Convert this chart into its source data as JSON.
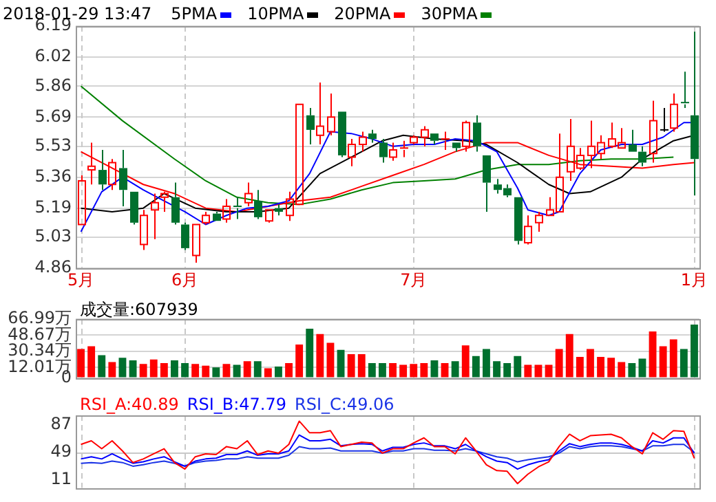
{
  "chart_data": [
    {
      "type": "candlestick",
      "title": "2018-01-29 13:47",
      "legend": "top",
      "marker": "none",
      "grid": true,
      "categories": [
        "5月",
        null,
        null,
        null,
        null,
        null,
        null,
        null,
        null,
        null,
        "6月",
        null,
        null,
        null,
        null,
        null,
        null,
        null,
        null,
        null,
        null,
        null,
        null,
        null,
        null,
        null,
        null,
        null,
        null,
        null,
        null,
        null,
        "7月",
        null,
        null,
        null,
        null,
        null,
        null,
        null,
        null,
        null,
        null,
        null,
        null,
        null,
        null,
        null,
        null,
        null,
        null,
        null,
        null,
        null,
        null,
        null,
        null,
        null,
        null,
        "1月"
      ],
      "ylim": [
        4.86,
        6.19
      ],
      "yticks": [
        4.86,
        5.03,
        5.19,
        5.36,
        5.53,
        5.69,
        5.86,
        6.02,
        6.19
      ],
      "ohlc": [
        [
          5.1,
          5.37,
          5.1,
          5.34
        ],
        [
          5.4,
          5.55,
          5.32,
          5.42
        ],
        [
          5.4,
          5.51,
          5.29,
          5.32
        ],
        [
          5.32,
          5.46,
          5.29,
          5.44
        ],
        [
          5.41,
          5.51,
          5.2,
          5.29
        ],
        [
          5.28,
          5.28,
          5.1,
          5.11
        ],
        [
          4.99,
          5.18,
          4.96,
          5.15
        ],
        [
          5.18,
          5.27,
          5.02,
          5.22
        ],
        [
          5.25,
          5.28,
          5.17,
          5.27
        ],
        [
          5.25,
          5.33,
          5.1,
          5.11
        ],
        [
          5.1,
          5.11,
          4.96,
          4.97
        ],
        [
          4.93,
          5.1,
          4.89,
          5.1
        ],
        [
          5.11,
          5.17,
          5.1,
          5.15
        ],
        [
          5.16,
          5.17,
          5.12,
          5.12
        ],
        [
          5.13,
          5.24,
          5.11,
          5.2
        ],
        [
          5.2,
          5.25,
          5.13,
          5.19
        ],
        [
          5.22,
          5.33,
          5.2,
          5.27
        ],
        [
          5.23,
          5.29,
          5.13,
          5.14
        ],
        [
          5.12,
          5.18,
          5.11,
          5.18
        ],
        [
          5.19,
          5.21,
          5.15,
          5.17
        ],
        [
          5.15,
          5.28,
          5.12,
          5.24
        ],
        [
          5.21,
          5.76,
          5.21,
          5.76
        ],
        [
          5.7,
          5.74,
          5.54,
          5.62
        ],
        [
          5.59,
          5.88,
          5.54,
          5.64
        ],
        [
          5.61,
          5.82,
          5.59,
          5.69
        ],
        [
          5.72,
          5.72,
          5.47,
          5.48
        ],
        [
          5.47,
          5.57,
          5.42,
          5.54
        ],
        [
          5.54,
          5.61,
          5.5,
          5.58
        ],
        [
          5.6,
          5.62,
          5.55,
          5.57
        ],
        [
          5.55,
          5.57,
          5.44,
          5.47
        ],
        [
          5.47,
          5.55,
          5.45,
          5.51
        ],
        [
          5.51,
          5.56,
          5.47,
          5.52
        ],
        [
          5.55,
          5.59,
          5.54,
          5.58
        ],
        [
          5.58,
          5.64,
          5.53,
          5.62
        ],
        [
          5.6,
          5.6,
          5.54,
          5.56
        ],
        [
          5.56,
          5.61,
          5.51,
          5.57
        ],
        [
          5.55,
          5.55,
          5.5,
          5.52
        ],
        [
          5.53,
          5.67,
          5.5,
          5.66
        ],
        [
          5.66,
          5.7,
          5.5,
          5.53
        ],
        [
          5.48,
          5.48,
          5.17,
          5.33
        ],
        [
          5.32,
          5.35,
          5.27,
          5.29
        ],
        [
          5.3,
          5.32,
          5.25,
          5.26
        ],
        [
          5.25,
          5.25,
          4.99,
          5.01
        ],
        [
          5.0,
          5.15,
          4.99,
          5.09
        ],
        [
          5.11,
          5.17,
          5.06,
          5.15
        ],
        [
          5.15,
          5.25,
          5.15,
          5.18
        ],
        [
          5.17,
          5.6,
          5.17,
          5.36
        ],
        [
          5.39,
          5.68,
          5.34,
          5.53
        ],
        [
          5.41,
          5.52,
          5.4,
          5.48
        ],
        [
          5.48,
          5.67,
          5.41,
          5.53
        ],
        [
          5.49,
          5.59,
          5.46,
          5.55
        ],
        [
          5.53,
          5.66,
          5.52,
          5.57
        ],
        [
          5.52,
          5.63,
          5.52,
          5.55
        ],
        [
          5.54,
          5.62,
          5.5,
          5.5
        ],
        [
          5.5,
          5.53,
          5.42,
          5.44
        ],
        [
          5.49,
          5.78,
          5.44,
          5.67
        ],
        [
          5.62,
          5.74,
          5.61,
          5.62
        ],
        [
          5.63,
          5.82,
          5.61,
          5.76
        ],
        [
          5.77,
          5.94,
          5.74,
          5.76
        ],
        [
          5.7,
          6.16,
          5.26,
          5.46
        ]
      ],
      "colors": [
        "#ff0000",
        "#ff0000",
        "#00702e",
        "#ff0000",
        "#00702e",
        "#00702e",
        "#ff0000",
        "#ff0000",
        "#ff0000",
        "#00702e",
        "#00702e",
        "#ff0000",
        "#ff0000",
        "#00702e",
        "#ff0000",
        "#00702e",
        "#ff0000",
        "#00702e",
        "#ff0000",
        "#00702e",
        "#ff0000",
        "#ff0000",
        "#00702e",
        "#ff0000",
        "#ff0000",
        "#00702e",
        "#ff0000",
        "#ff0000",
        "#00702e",
        "#00702e",
        "#ff0000",
        "#ff0000",
        "#ff0000",
        "#ff0000",
        "#00702e",
        "#ff0000",
        "#00702e",
        "#ff0000",
        "#00702e",
        "#00702e",
        "#00702e",
        "#00702e",
        "#00702e",
        "#ff0000",
        "#ff0000",
        "#ff0000",
        "#ff0000",
        "#ff0000",
        "#ff0000",
        "#ff0000",
        "#ff0000",
        "#ff0000",
        "#ff0000",
        "#00702e",
        "#00702e",
        "#ff0000",
        "#000000",
        "#ff0000",
        "#00702e",
        "#00702e"
      ],
      "series": [
        {
          "name": "5PMA",
          "type": "line",
          "color": "#0000ff",
          "values": [
            5.06,
            null,
            5.28,
            null,
            5.36,
            null,
            5.29,
            null,
            5.23,
            null,
            5.17,
            null,
            5.1,
            null,
            5.15,
            null,
            5.19,
            null,
            5.2,
            null,
            5.23,
            null,
            5.38,
            null,
            5.61,
            null,
            5.6,
            null,
            5.57,
            null,
            5.53,
            null,
            5.54,
            null,
            5.54,
            null,
            5.57,
            null,
            5.56,
            null,
            5.5,
            null,
            5.3,
            5.18,
            null,
            5.15,
            5.17,
            null,
            5.38,
            null,
            5.51,
            null,
            5.54,
            null,
            5.54,
            null,
            5.58,
            null,
            5.66,
            5.66
          ]
        },
        {
          "name": "10PMA",
          "type": "line",
          "color": "#000000",
          "values": [
            5.19,
            null,
            null,
            5.17,
            null,
            null,
            5.19,
            null,
            5.27,
            null,
            null,
            5.19,
            null,
            null,
            5.17,
            null,
            null,
            5.17,
            null,
            null,
            5.19,
            null,
            null,
            5.38,
            null,
            null,
            5.47,
            null,
            null,
            5.56,
            null,
            5.59,
            null,
            null,
            5.57,
            null,
            null,
            5.56,
            null,
            5.54,
            null,
            null,
            5.44,
            null,
            null,
            5.32,
            null,
            5.27,
            null,
            5.28,
            null,
            null,
            5.36,
            null,
            5.46,
            null,
            null,
            5.56,
            null,
            5.59
          ]
        },
        {
          "name": "20PMA",
          "type": "line",
          "color": "#ff0000",
          "values": [
            5.5,
            null,
            null,
            5.41,
            null,
            null,
            5.32,
            null,
            null,
            5.27,
            null,
            null,
            5.19,
            null,
            null,
            5.17,
            null,
            null,
            5.2,
            null,
            null,
            5.23,
            null,
            null,
            5.25,
            null,
            null,
            5.31,
            null,
            null,
            5.37,
            null,
            null,
            5.43,
            null,
            null,
            5.5,
            null,
            null,
            5.55,
            null,
            null,
            5.55,
            null,
            null,
            5.48,
            null,
            null,
            5.43,
            null,
            null,
            5.42,
            null,
            null,
            5.41,
            null,
            null,
            5.43,
            null,
            5.44
          ]
        },
        {
          "name": "30PMA",
          "type": "line",
          "color": "#008000",
          "values": [
            5.86,
            null,
            null,
            null,
            5.67,
            null,
            null,
            null,
            null,
            5.46,
            null,
            null,
            5.34,
            null,
            null,
            5.25,
            null,
            null,
            5.22,
            null,
            null,
            5.21,
            null,
            null,
            5.24,
            null,
            null,
            5.29,
            null,
            null,
            5.33,
            null,
            null,
            5.34,
            null,
            null,
            5.35,
            null,
            null,
            5.4,
            null,
            null,
            5.43,
            null,
            null,
            5.43,
            null,
            null,
            5.45,
            null,
            null,
            5.46,
            null,
            null,
            5.46,
            null,
            null,
            5.47,
            null,
            null
          ]
        }
      ]
    },
    {
      "type": "bar",
      "title": "成交量:607939",
      "tick_labels": "y",
      "grid": true,
      "categories": [
        null,
        null,
        null,
        null,
        null,
        null,
        null,
        null,
        null,
        null,
        null,
        null,
        null,
        null,
        null,
        null,
        null,
        null,
        null,
        null,
        null,
        null,
        null,
        null,
        null,
        null,
        null,
        null,
        null,
        null,
        null,
        null,
        null,
        null,
        null,
        null,
        null,
        null,
        null,
        null,
        null,
        null,
        null,
        null,
        null,
        null,
        null,
        null,
        null,
        null,
        null,
        null,
        null,
        null,
        null,
        null,
        null,
        null,
        null,
        null
      ],
      "ylim": [
        0,
        66.99
      ],
      "yticks": [
        0,
        {
          "value": 12.01,
          "label": "12.01万"
        },
        {
          "value": 30.34,
          "label": "30.34万"
        },
        {
          "value": 48.67,
          "label": "48.67万"
        },
        {
          "value": 66.99,
          "label": "66.99万"
        }
      ],
      "values": [
        33,
        36,
        26,
        18,
        23,
        20,
        16,
        21,
        17,
        20,
        17,
        16,
        14,
        12,
        16,
        15,
        19,
        19,
        11,
        13,
        17,
        38,
        56,
        50,
        40,
        32,
        27,
        27,
        17,
        17,
        17,
        15,
        16,
        17,
        20,
        17,
        19,
        37,
        25,
        33,
        19,
        17,
        25,
        15,
        15,
        15,
        33,
        50,
        24,
        33,
        24,
        23,
        18,
        17,
        22,
        53,
        36,
        44,
        33,
        60.79
      ],
      "colors": [
        "#ff0000",
        "#ff0000",
        "#00702e",
        "#ff0000",
        "#00702e",
        "#00702e",
        "#ff0000",
        "#ff0000",
        "#ff0000",
        "#00702e",
        "#00702e",
        "#ff0000",
        "#ff0000",
        "#00702e",
        "#ff0000",
        "#00702e",
        "#ff0000",
        "#00702e",
        "#ff0000",
        "#00702e",
        "#ff0000",
        "#ff0000",
        "#00702e",
        "#ff0000",
        "#ff0000",
        "#00702e",
        "#ff0000",
        "#ff0000",
        "#00702e",
        "#00702e",
        "#ff0000",
        "#ff0000",
        "#ff0000",
        "#ff0000",
        "#00702e",
        "#ff0000",
        "#00702e",
        "#ff0000",
        "#00702e",
        "#00702e",
        "#00702e",
        "#00702e",
        "#00702e",
        "#ff0000",
        "#ff0000",
        "#ff0000",
        "#ff0000",
        "#ff0000",
        "#ff0000",
        "#ff0000",
        "#ff0000",
        "#ff0000",
        "#ff0000",
        "#00702e",
        "#00702e",
        "#ff0000",
        "#ff0000",
        "#ff0000",
        "#00702e",
        "#00702e"
      ]
    },
    {
      "type": "line",
      "legend": "top left",
      "marker": "none",
      "tick_labels": "y",
      "grid": "x",
      "categories": [
        null,
        null,
        null,
        null,
        null,
        null,
        null,
        null,
        null,
        null,
        null,
        null,
        null,
        null,
        null,
        null,
        null,
        null,
        null,
        null,
        null,
        null,
        null,
        null,
        null,
        null,
        null,
        null,
        null,
        null,
        null,
        null,
        null,
        null,
        null,
        null,
        null,
        null,
        null,
        null,
        null,
        null,
        null,
        null,
        null,
        null,
        null,
        null,
        null,
        null,
        null,
        null,
        null,
        null,
        null,
        null,
        null,
        null,
        null,
        null
      ],
      "ylim": [
        0,
        100
      ],
      "yticks": [
        11,
        49,
        87
      ],
      "ref_lines": [
        {
          "axis": "y",
          "value": 49,
          "color": "#c8c8c8"
        }
      ],
      "series": [
        {
          "name": "RSI_A:40.89",
          "color": "#ff0000",
          "values": [
            60,
            65,
            54,
            65,
            51,
            35,
            40,
            47,
            54,
            35,
            26,
            43,
            47,
            46,
            57,
            54,
            65,
            46,
            51,
            48,
            60,
            92,
            76,
            76,
            79,
            57,
            60,
            63,
            62,
            48,
            54,
            54,
            62,
            69,
            57,
            57,
            47,
            69,
            51,
            32,
            24,
            23,
            6,
            19,
            29,
            36,
            57,
            74,
            65,
            72,
            73,
            74,
            69,
            57,
            47,
            76,
            67,
            79,
            78,
            40.89
          ]
        },
        {
          "name": "RSI_B:47.79",
          "color": "#0000ff",
          "values": [
            40,
            43,
            40,
            47,
            40,
            34,
            36,
            40,
            43,
            36,
            30,
            37,
            40,
            41,
            46,
            46,
            51,
            45,
            47,
            47,
            51,
            73,
            65,
            65,
            67,
            58,
            60,
            61,
            60,
            51,
            56,
            56,
            60,
            62,
            58,
            58,
            54,
            60,
            51,
            43,
            37,
            35,
            26,
            32,
            36,
            39,
            51,
            61,
            57,
            60,
            62,
            62,
            60,
            56,
            51,
            65,
            62,
            69,
            69,
            47.79
          ]
        },
        {
          "name": "RSI_C:49.06",
          "color": "#1a33e6",
          "values": [
            34,
            35,
            34,
            37,
            35,
            30,
            32,
            35,
            37,
            34,
            30,
            35,
            37,
            38,
            40,
            40,
            43,
            41,
            41,
            41,
            45,
            57,
            54,
            54,
            55,
            51,
            51,
            51,
            51,
            48,
            51,
            51,
            54,
            54,
            52,
            52,
            51,
            54,
            51,
            47,
            43,
            41,
            36,
            39,
            41,
            43,
            48,
            57,
            54,
            57,
            58,
            58,
            57,
            54,
            51,
            58,
            58,
            60,
            60,
            49.06
          ]
        }
      ]
    }
  ]
}
